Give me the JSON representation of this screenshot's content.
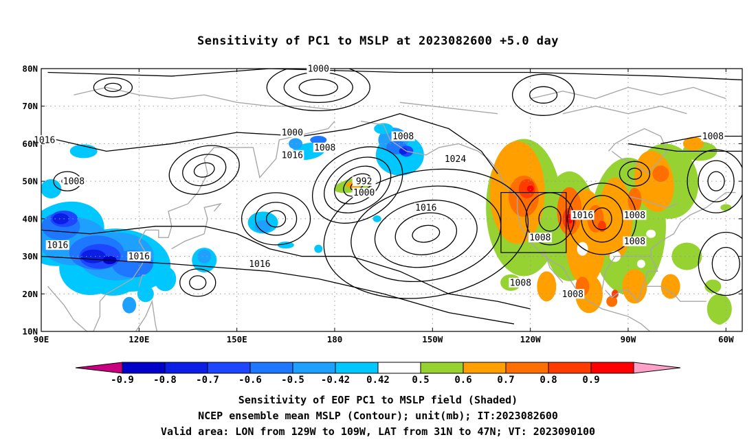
{
  "title": "Sensitivity of PC1 to MSLP at 2023082600 +5.0 day",
  "axes": {
    "lon_ticks": [
      "90E",
      "120E",
      "150E",
      "180",
      "150W",
      "120W",
      "90W",
      "60W"
    ],
    "lat_ticks": [
      "80N",
      "70N",
      "60N",
      "50N",
      "40N",
      "30N",
      "20N",
      "10N"
    ],
    "lon_range": [
      90,
      305
    ],
    "lat_range": [
      10,
      80
    ],
    "grid": "dotted"
  },
  "contour_labels": [
    "1000",
    "1000",
    "1008",
    "1016",
    "992",
    "1000",
    "1016",
    "1008",
    "1016",
    "1016",
    "1016",
    "1008",
    "1024",
    "1016",
    "1008",
    "1008",
    "1016",
    "1008",
    "1008",
    "1008",
    "1008"
  ],
  "valid_box": {
    "lon": [
      231,
      251
    ],
    "lat": [
      31,
      47
    ]
  },
  "colorbar": {
    "labels": [
      "-0.9",
      "-0.8",
      "-0.7",
      "-0.6",
      "-0.5",
      "-0.42",
      "0.42",
      "0.5",
      "0.6",
      "0.7",
      "0.8",
      "0.9"
    ],
    "colors": [
      "#c80080",
      "#0000c8",
      "#0a1ee6",
      "#1e46ff",
      "#1e78ff",
      "#1ea0ff",
      "#00c8ff",
      "#ffffff",
      "#96d232",
      "#ffa000",
      "#ff6e00",
      "#ff3c00",
      "#ff0000",
      "#ffa0c8"
    ]
  },
  "chart_data": {
    "type": "heatmap",
    "shaded_field": "Sensitivity of EOF PC1 to MSLP field",
    "contour_field": "NCEP ensemble mean MSLP",
    "unit": "mb",
    "contour_levels_labeled": [
      992,
      1000,
      1008,
      1016,
      1024
    ],
    "negative_regions": [
      {
        "lon": [
          92,
          122
        ],
        "lat": [
          24,
          44
        ],
        "peak": -0.9
      },
      {
        "lon": [
          163,
          178
        ],
        "lat": [
          53,
          64
        ],
        "peak": -0.5
      },
      {
        "lon": [
          190,
          205
        ],
        "lat": [
          55,
          67
        ],
        "peak": -0.7
      },
      {
        "lon": [
          140,
          148
        ],
        "lat": [
          19,
          29
        ],
        "peak": -0.5
      },
      {
        "lon": [
          155,
          162
        ],
        "lat": [
          35,
          43
        ],
        "peak": -0.5
      }
    ],
    "positive_regions": [
      {
        "lon": [
          225,
          262
        ],
        "lat": [
          15,
          62
        ],
        "peak": 0.9
      },
      {
        "lon": [
          262,
          285
        ],
        "lat": [
          12,
          63
        ],
        "peak": 0.8
      },
      {
        "lon": [
          178,
          195
        ],
        "lat": [
          46,
          51
        ],
        "peak": 0.6
      }
    ]
  },
  "captions": {
    "line1": "Sensitivity of EOF PC1 to MSLP field (Shaded)",
    "line2": "NCEP ensemble mean MSLP (Contour); unit(mb); IT:2023082600",
    "line3": "Valid area: LON from 129W to 109W, LAT from 31N to 47N; VT: 2023090100"
  },
  "icons": {
    "coastline": "coastline-icon",
    "valid-area-box": "rectangle-icon"
  }
}
